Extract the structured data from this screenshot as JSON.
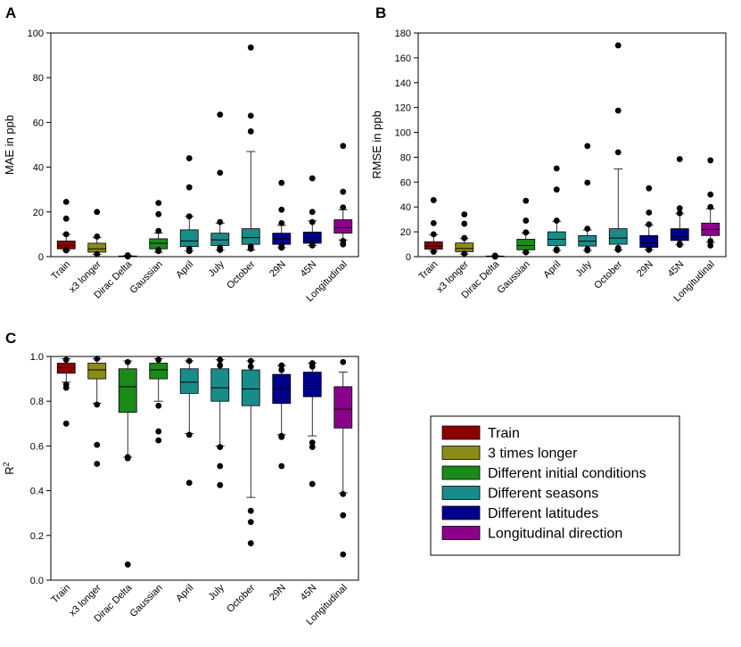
{
  "legend": {
    "items": [
      {
        "label": "Train",
        "color": "#8b0000"
      },
      {
        "label": "3 times longer",
        "color": "#8b8b1a"
      },
      {
        "label": "Different initial conditions",
        "color": "#1a8b1a"
      },
      {
        "label": "Different seasons",
        "color": "#1a8b8b"
      },
      {
        "label": "Different latitudes",
        "color": "#00008b"
      },
      {
        "label": "Longitudinal direction",
        "color": "#8b008b"
      }
    ]
  },
  "chart_data": [
    {
      "panel": "A",
      "type": "box",
      "ylabel": "MAE in ppb",
      "ylim": [
        0,
        100
      ],
      "yticks": [
        0,
        20,
        40,
        60,
        80,
        100
      ],
      "categories": [
        "Train",
        "x3 longer",
        "Dirac Delta",
        "Gaussian",
        "April",
        "July",
        "October",
        "29N",
        "45N",
        "Longitudinal"
      ],
      "colors": [
        "#8b0000",
        "#8b8b1a",
        "#1a8b1a",
        "#1a8b1a",
        "#1a8b8b",
        "#1a8b8b",
        "#1a8b8b",
        "#00008b",
        "#00008b",
        "#8b008b"
      ],
      "boxes": [
        {
          "q1": 3.5,
          "median": 5.0,
          "q3": 7.0,
          "low": 2.8,
          "high": 10.0,
          "outliers": [
            24.5,
            17.0,
            10.0,
            3.0,
            2.8
          ]
        },
        {
          "q1": 2.0,
          "median": 3.5,
          "q3": 6.0,
          "low": 1.0,
          "high": 8.5,
          "outliers": [
            20.0,
            9.0,
            1.2
          ]
        },
        {
          "q1": 0.1,
          "median": 0.2,
          "q3": 0.3,
          "low": 0.0,
          "high": 0.5,
          "outliers": [
            0.6,
            0.05
          ]
        },
        {
          "q1": 3.5,
          "median": 6.0,
          "q3": 8.0,
          "low": 2.0,
          "high": 10.5,
          "outliers": [
            24.0,
            19.0,
            11.5,
            3.0,
            2.5
          ]
        },
        {
          "q1": 4.5,
          "median": 7.0,
          "q3": 12.0,
          "low": 2.5,
          "high": 18.0,
          "outliers": [
            44.0,
            31.0,
            18.0,
            3.5,
            2.5
          ]
        },
        {
          "q1": 5.0,
          "median": 7.5,
          "q3": 10.5,
          "low": 3.0,
          "high": 15.0,
          "outliers": [
            63.5,
            37.5,
            15.5,
            4.0,
            3.0
          ]
        },
        {
          "q1": 5.5,
          "median": 8.5,
          "q3": 12.5,
          "low": 3.0,
          "high": 47.0,
          "outliers": [
            93.5,
            63.0,
            56.0,
            4.5,
            3.5
          ]
        },
        {
          "q1": 5.5,
          "median": 8.0,
          "q3": 10.5,
          "low": 4.0,
          "high": 14.0,
          "outliers": [
            33.0,
            21.0,
            15.0,
            5.0,
            4.0
          ]
        },
        {
          "q1": 6.0,
          "median": 8.5,
          "q3": 11.0,
          "low": 5.0,
          "high": 16.0,
          "outliers": [
            35.0,
            20.0,
            15.5,
            6.0,
            5.0
          ]
        },
        {
          "q1": 10.5,
          "median": 13.0,
          "q3": 16.5,
          "low": 7.5,
          "high": 21.0,
          "outliers": [
            49.5,
            29.0,
            22.0,
            7.0,
            5.5
          ]
        }
      ]
    },
    {
      "panel": "B",
      "type": "box",
      "ylabel": "RMSE in ppb",
      "ylim": [
        0,
        180
      ],
      "yticks": [
        0,
        20,
        40,
        60,
        80,
        100,
        120,
        140,
        160,
        180
      ],
      "categories": [
        "Train",
        "x3 longer",
        "Dirac Delta",
        "Gaussian",
        "April",
        "July",
        "October",
        "29N",
        "45N",
        "Longitudinal"
      ],
      "colors": [
        "#8b0000",
        "#8b8b1a",
        "#1a8b1a",
        "#1a8b1a",
        "#1a8b8b",
        "#1a8b8b",
        "#1a8b8b",
        "#00008b",
        "#00008b",
        "#8b008b"
      ],
      "boxes": [
        {
          "q1": 6.0,
          "median": 8.5,
          "q3": 12.0,
          "low": 4.5,
          "high": 17.5,
          "outliers": [
            45.5,
            27.0,
            18.0,
            4.0
          ]
        },
        {
          "q1": 4.0,
          "median": 6.5,
          "q3": 11.0,
          "low": 2.0,
          "high": 14.5,
          "outliers": [
            34.0,
            26.5,
            15.0,
            2.5
          ]
        },
        {
          "q1": 0.1,
          "median": 0.3,
          "q3": 0.5,
          "low": 0.0,
          "high": 0.7,
          "outliers": [
            0.8,
            0.05
          ]
        },
        {
          "q1": 5.5,
          "median": 9.0,
          "q3": 14.0,
          "low": 3.5,
          "high": 19.0,
          "outliers": [
            45.0,
            29.0,
            19.5,
            3.5
          ]
        },
        {
          "q1": 9.0,
          "median": 14.0,
          "q3": 20.0,
          "low": 5.0,
          "high": 28.5,
          "outliers": [
            71.0,
            54.0,
            29.0,
            6.0,
            5.0
          ]
        },
        {
          "q1": 8.5,
          "median": 12.5,
          "q3": 17.0,
          "low": 5.0,
          "high": 21.5,
          "outliers": [
            89.0,
            59.5,
            22.5,
            6.0,
            5.0
          ]
        },
        {
          "q1": 10.0,
          "median": 15.0,
          "q3": 22.5,
          "low": 5.5,
          "high": 70.5,
          "outliers": [
            170.0,
            117.5,
            84.0,
            7.0,
            5.5
          ]
        },
        {
          "q1": 7.5,
          "median": 11.0,
          "q3": 17.0,
          "low": 5.5,
          "high": 25.5,
          "outliers": [
            55.0,
            35.5,
            26.0,
            6.5,
            5.5
          ]
        },
        {
          "q1": 13.0,
          "median": 16.5,
          "q3": 22.5,
          "low": 9.5,
          "high": 34.5,
          "outliers": [
            78.5,
            39.0,
            35.0,
            10.5,
            9.5
          ]
        },
        {
          "q1": 17.0,
          "median": 22.0,
          "q3": 27.0,
          "low": 11.5,
          "high": 38.5,
          "outliers": [
            77.5,
            50.0,
            40.0,
            12.5,
            9.0
          ]
        }
      ]
    },
    {
      "panel": "C",
      "type": "box",
      "ylabel": "R",
      "ylabel_superscript": "2",
      "ylim": [
        0,
        1
      ],
      "yticks": [
        "0.0",
        "0.2",
        "0.4",
        "0.6",
        "0.8",
        "1.0"
      ],
      "categories": [
        "Train",
        "x3 longer",
        "Dirac Delta",
        "Gaussian",
        "April",
        "July",
        "October",
        "29N",
        "45N",
        "Longitudinal"
      ],
      "colors": [
        "#8b0000",
        "#8b8b1a",
        "#1a8b1a",
        "#1a8b1a",
        "#1a8b8b",
        "#1a8b8b",
        "#1a8b8b",
        "#00008b",
        "#00008b",
        "#8b008b"
      ],
      "boxes": [
        {
          "q1": 0.925,
          "median": 0.95,
          "q3": 0.97,
          "low": 0.885,
          "high": 0.99,
          "outliers": [
            0.985,
            0.875,
            0.86,
            0.7
          ]
        },
        {
          "q1": 0.9,
          "median": 0.94,
          "q3": 0.97,
          "low": 0.79,
          "high": 0.99,
          "outliers": [
            0.99,
            0.785,
            0.605,
            0.52
          ]
        },
        {
          "q1": 0.75,
          "median": 0.865,
          "q3": 0.945,
          "low": 0.55,
          "high": 0.98,
          "outliers": [
            0.975,
            0.55,
            0.545,
            0.07
          ]
        },
        {
          "q1": 0.9,
          "median": 0.94,
          "q3": 0.97,
          "low": 0.8,
          "high": 0.99,
          "outliers": [
            0.985,
            0.78,
            0.665,
            0.625
          ]
        },
        {
          "q1": 0.835,
          "median": 0.885,
          "q3": 0.945,
          "low": 0.655,
          "high": 0.98,
          "outliers": [
            0.98,
            0.65,
            0.435
          ]
        },
        {
          "q1": 0.8,
          "median": 0.86,
          "q3": 0.945,
          "low": 0.6,
          "high": 0.985,
          "outliers": [
            0.985,
            0.96,
            0.595,
            0.51,
            0.425
          ]
        },
        {
          "q1": 0.78,
          "median": 0.855,
          "q3": 0.94,
          "low": 0.37,
          "high": 0.98,
          "outliers": [
            0.98,
            0.955,
            0.31,
            0.26,
            0.165
          ]
        },
        {
          "q1": 0.79,
          "median": 0.855,
          "q3": 0.92,
          "low": 0.65,
          "high": 0.96,
          "outliers": [
            0.96,
            0.94,
            0.645,
            0.64,
            0.51
          ]
        },
        {
          "q1": 0.82,
          "median": 0.87,
          "q3": 0.93,
          "low": 0.645,
          "high": 0.97,
          "outliers": [
            0.97,
            0.955,
            0.615,
            0.595,
            0.43
          ]
        },
        {
          "q1": 0.68,
          "median": 0.765,
          "q3": 0.865,
          "low": 0.39,
          "high": 0.93,
          "outliers": [
            0.975,
            0.385,
            0.29,
            0.115
          ]
        }
      ]
    }
  ]
}
